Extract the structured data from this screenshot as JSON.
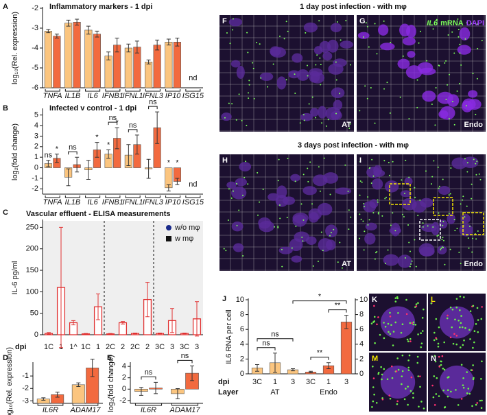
{
  "chart_data": [
    {
      "type": "bar",
      "panel": "A",
      "title": "Inflammatory markers - 1 dpi",
      "ylabel": "log₁₀(Rel. expression)",
      "categories": [
        "TNFA",
        "IL1B",
        "IL6",
        "IFNB1",
        "IFNL1",
        "IFNL3",
        "IP10",
        "ISG15"
      ],
      "category_style": "italic",
      "bar_base": "bottom",
      "series": [
        {
          "color": "#fbc57f",
          "values": [
            -3.15,
            -2.75,
            -3.1,
            -4.4,
            -4.0,
            -4.7,
            -3.7,
            null
          ],
          "errors": [
            0.08,
            0.15,
            0.2,
            0.2,
            0.2,
            0.1,
            0.15,
            null
          ]
        },
        {
          "color": "#f26a3f",
          "values": [
            -3.4,
            -2.7,
            -3.3,
            -3.85,
            -3.95,
            -3.85,
            -3.7,
            null
          ],
          "errors": [
            0.1,
            0.15,
            0.15,
            0.35,
            0.3,
            0.25,
            0.2,
            null
          ]
        }
      ],
      "notes": [
        null,
        null,
        null,
        null,
        null,
        null,
        null,
        "nd"
      ],
      "ylim": [
        -6,
        -2
      ],
      "yticks": [
        -6,
        -5,
        -4,
        -3,
        -2
      ]
    },
    {
      "type": "bar",
      "panel": "B",
      "title": "Infected v control - 1 dpi",
      "ylabel": "log₂(fold change)",
      "categories": [
        "TNFA",
        "IL1B",
        "IL6",
        "IFNB1",
        "IFNL1",
        "IFNL3",
        "IP10",
        "ISG15"
      ],
      "category_style": "italic",
      "bar_base": "zero",
      "series": [
        {
          "color": "#fbc57f",
          "values": [
            0.4,
            -0.9,
            -0.2,
            1.3,
            1.2,
            -0.1,
            -1.9,
            null
          ],
          "errors": [
            0.3,
            0.8,
            0.9,
            0.4,
            1.0,
            0.9,
            0.3,
            null
          ],
          "significance": [
            "ns",
            null,
            null,
            "*",
            null,
            null,
            "*",
            null
          ]
        },
        {
          "color": "#f26a3f",
          "values": [
            0.9,
            0.3,
            1.7,
            2.8,
            2.2,
            3.8,
            -1.3,
            null
          ],
          "errors": [
            0.4,
            0.7,
            0.7,
            1.0,
            0.9,
            1.5,
            0.3,
            null
          ],
          "significance": [
            "*",
            null,
            "*",
            "*",
            null,
            null,
            "*",
            null
          ]
        }
      ],
      "brackets": [
        {
          "text": "ns",
          "category": 1
        },
        {
          "text": "ns",
          "category": 3
        },
        {
          "text": "ns",
          "category": 4
        },
        {
          "text": "ns",
          "category": 5
        }
      ],
      "notes": [
        null,
        null,
        null,
        null,
        null,
        null,
        null,
        "nd"
      ],
      "ylim": [
        -2.5,
        5.5
      ],
      "yticks": [
        -2,
        -1,
        0,
        1,
        2,
        3,
        4,
        5
      ]
    },
    {
      "type": "bar",
      "panel": "C",
      "title": "Vascular effluent - ELISA measurements",
      "ylabel": "IL-6 pg/ml",
      "xlabel": "dpi",
      "categories": [
        "1C",
        "1",
        "1^",
        "1C",
        "1",
        "2C",
        "2",
        "2C",
        "2",
        "3C",
        "3",
        "3C",
        "3"
      ],
      "bar_base": "zero",
      "bar_style": "outline",
      "shaded": true,
      "separators": [
        5,
        9
      ],
      "series": [
        {
          "color": "#e03030",
          "values": [
            3,
            110,
            28,
            2,
            65,
            2,
            28,
            3,
            82,
            3,
            33,
            3,
            37
          ],
          "errors": [
            2,
            140,
            5,
            1,
            30,
            1,
            3,
            1,
            40,
            1,
            28,
            1,
            40
          ]
        }
      ],
      "legend": [
        {
          "name": "w/o mφ",
          "color": "#1a2a8a",
          "marker": "circle"
        },
        {
          "name": "w mφ",
          "color": "#111111",
          "marker": "square"
        }
      ],
      "ylim": [
        0,
        265
      ],
      "yticks": [
        0,
        50,
        100,
        150,
        200,
        250
      ]
    },
    {
      "type": "bar",
      "panel": "D",
      "ylabel": "log₁₀(Rel. expression)",
      "categories": [
        "IL6R",
        "ADAM17"
      ],
      "category_style": "italic",
      "bar_base": "bottom",
      "series": [
        {
          "color": "#fbc57f",
          "values": [
            -2.85,
            -1.7
          ],
          "errors": [
            0.1,
            0.15
          ]
        },
        {
          "color": "#f26a3f",
          "values": [
            -2.5,
            -0.35
          ],
          "errors": [
            0.2,
            0.7
          ]
        }
      ],
      "ylim": [
        -3.2,
        0
      ],
      "yticks": [
        -3,
        -2,
        -1
      ]
    },
    {
      "type": "bar",
      "panel": "E",
      "ylabel": "log₂(fold change)",
      "categories": [
        "IL6R",
        "ADAM17"
      ],
      "category_style": "italic",
      "bar_base": "zero",
      "series": [
        {
          "color": "#fbc57f",
          "values": [
            -0.4,
            -0.8
          ],
          "errors": [
            0.7,
            0.9
          ]
        },
        {
          "color": "#f26a3f",
          "values": [
            0.2,
            2.8
          ],
          "errors": [
            1.0,
            1.3
          ]
        }
      ],
      "brackets": [
        {
          "text": "ns",
          "category": 0
        },
        {
          "text": "ns",
          "category": 1
        }
      ],
      "ylim": [
        -2.5,
        4.5
      ],
      "yticks": [
        -2,
        0,
        2,
        4
      ]
    },
    {
      "type": "bar",
      "panel": "J",
      "ylabel": "IL6 RNA per cell",
      "xlabels": [
        "dpi",
        "Layer"
      ],
      "bar_base": "zero",
      "categories": [
        "3C",
        "1",
        "3",
        "3C",
        "1",
        "3"
      ],
      "series": [
        {
          "colors": [
            "#fbc57f",
            "#fbc57f",
            "#fbc57f",
            "#f26a3f",
            "#f26a3f",
            "#f26a3f"
          ],
          "values": [
            0.8,
            1.5,
            0.55,
            0.25,
            1.1,
            7.0
          ],
          "errors": [
            0.45,
            1.3,
            0.15,
            0.1,
            0.4,
            0.9
          ]
        }
      ],
      "groups": [
        {
          "label": "AT",
          "from": 0,
          "to": 2
        },
        {
          "label": "Endo",
          "from": 3,
          "to": 5
        }
      ],
      "brackets": [
        {
          "text": "ns",
          "from": 0,
          "to": 1
        },
        {
          "text": "ns",
          "from": 0,
          "to": 2
        },
        {
          "text": "**",
          "from": 3,
          "to": 4
        },
        {
          "text": "**",
          "from": 4,
          "to": 5
        },
        {
          "text": "*",
          "from": 2,
          "to": 5
        }
      ],
      "ylim": [
        0,
        10
      ],
      "yticks": [
        0,
        2,
        4,
        6,
        8,
        10
      ],
      "y2lim": [
        0,
        10
      ],
      "y2ticks": [
        0,
        2,
        4,
        6,
        8,
        10
      ]
    }
  ],
  "images": {
    "day1_title": "1 day post infection - with mφ",
    "day3_title": "3 days post infection - with mφ",
    "legend": {
      "gene": "IL6",
      "green": "mRNA",
      "purple": "DAPI"
    },
    "panels": [
      {
        "panel": "F",
        "label": "AT"
      },
      {
        "panel": "G",
        "label": "Endo"
      },
      {
        "panel": "H",
        "label": "AT"
      },
      {
        "panel": "I",
        "label": "Endo"
      },
      {
        "panel": "K"
      },
      {
        "panel": "L"
      },
      {
        "panel": "M"
      },
      {
        "panel": "N"
      }
    ]
  }
}
